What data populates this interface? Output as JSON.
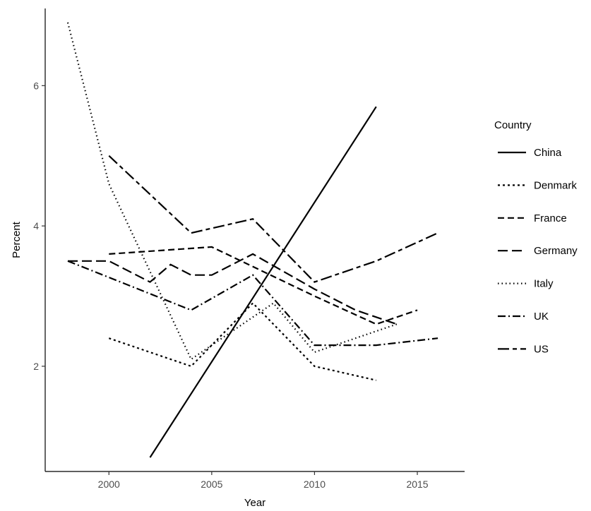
{
  "chart_data": {
    "type": "line",
    "title": "",
    "xlabel": "Year",
    "ylabel": "Percent",
    "xlim": [
      1996.9,
      2017.3
    ],
    "ylim": [
      0.5,
      7.1
    ],
    "x_ticks": [
      2000,
      2005,
      2010,
      2015
    ],
    "y_ticks": [
      2,
      4,
      6
    ],
    "grid": false,
    "legend": {
      "title": "Country",
      "position": "right"
    },
    "series": [
      {
        "name": "China",
        "linetype": "solid",
        "points": [
          [
            2002,
            0.7
          ],
          [
            2013,
            5.7
          ]
        ]
      },
      {
        "name": "Denmark",
        "linetype": "dotted",
        "points": [
          [
            2000,
            2.4
          ],
          [
            2004,
            2.0
          ],
          [
            2007,
            2.9
          ],
          [
            2010,
            2.0
          ],
          [
            2013,
            1.8
          ]
        ]
      },
      {
        "name": "France",
        "linetype": "dashed",
        "points": [
          [
            2000,
            3.6
          ],
          [
            2005,
            3.7
          ],
          [
            2010,
            3.0
          ],
          [
            2013,
            2.6
          ],
          [
            2015,
            2.8
          ]
        ]
      },
      {
        "name": "Germany",
        "linetype": "longdash",
        "points": [
          [
            1998,
            3.5
          ],
          [
            2000,
            3.5
          ],
          [
            2002,
            3.2
          ],
          [
            2003,
            3.45
          ],
          [
            2004,
            3.3
          ],
          [
            2005,
            3.3
          ],
          [
            2007,
            3.6
          ],
          [
            2010,
            3.1
          ],
          [
            2012,
            2.8
          ],
          [
            2014,
            2.6
          ]
        ]
      },
      {
        "name": "Italy",
        "linetype": "dotted-fine",
        "points": [
          [
            1998,
            6.9
          ],
          [
            2000,
            4.6
          ],
          [
            2004,
            2.1
          ],
          [
            2007,
            2.7
          ],
          [
            2008,
            2.9
          ],
          [
            2010,
            2.2
          ],
          [
            2014,
            2.6
          ]
        ]
      },
      {
        "name": "UK",
        "linetype": "dotdash",
        "points": [
          [
            1998,
            3.5
          ],
          [
            2004,
            2.8
          ],
          [
            2007,
            3.3
          ],
          [
            2010,
            2.3
          ],
          [
            2013,
            2.3
          ],
          [
            2016,
            2.4
          ]
        ]
      },
      {
        "name": "US",
        "linetype": "twodash",
        "points": [
          [
            2000,
            5.0
          ],
          [
            2004,
            3.9
          ],
          [
            2007,
            4.1
          ],
          [
            2010,
            3.2
          ],
          [
            2013,
            3.5
          ],
          [
            2016,
            3.9
          ]
        ]
      }
    ]
  }
}
